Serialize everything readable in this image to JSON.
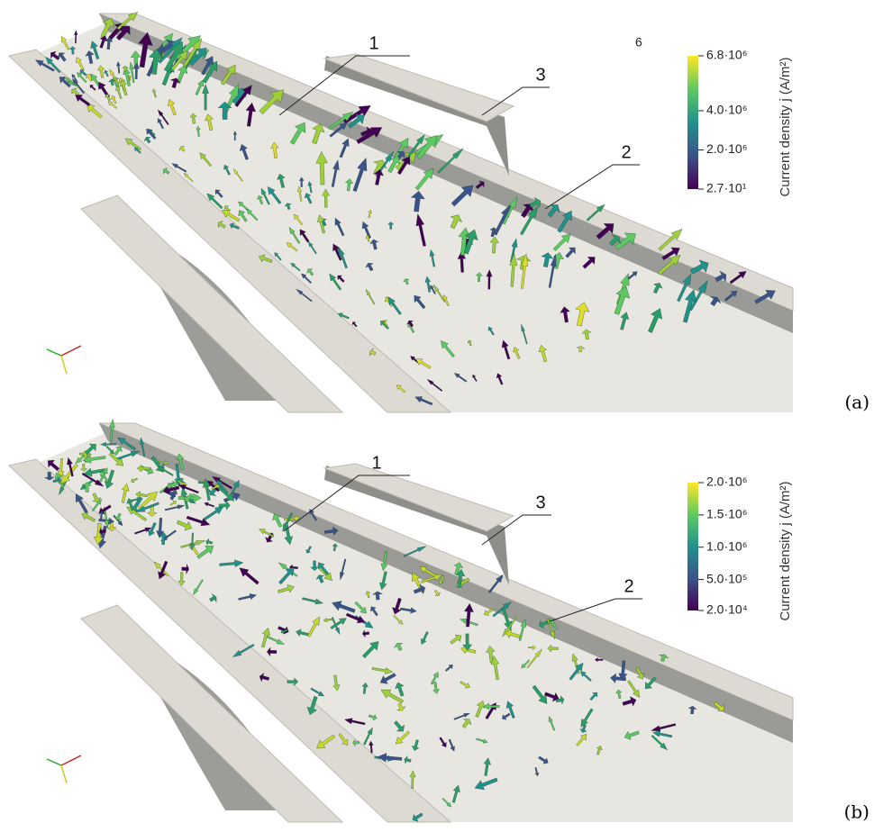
{
  "figure": {
    "panels": [
      {
        "label": "(a)",
        "extra_label": "6",
        "callouts": [
          "1",
          "2",
          "3"
        ],
        "colorbar": {
          "title": "Current density j (A/m²)",
          "lim": [
            27,
            6800000
          ],
          "ticks": [
            {
              "value": 6800000,
              "label": "6.8·10⁶"
            },
            {
              "value": 4000000,
              "label": "4.0·10⁶"
            },
            {
              "value": 2000000,
              "label": "2.0·10⁶"
            },
            {
              "value": 27,
              "label": "2.7·10¹"
            }
          ]
        }
      },
      {
        "label": "(b)",
        "callouts": [
          "1",
          "2",
          "3"
        ],
        "colorbar": {
          "title": "Current density j (A/m²)",
          "lim": [
            20000,
            2000000
          ],
          "ticks": [
            {
              "value": 2000000,
              "label": "2.0·10⁶"
            },
            {
              "value": 1500000,
              "label": "1.5·10⁶"
            },
            {
              "value": 1000000,
              "label": "1.0·10⁶"
            },
            {
              "value": 500000,
              "label": "5.0·10⁵"
            },
            {
              "value": 20000,
              "label": "2.0·10⁴"
            }
          ]
        }
      }
    ]
  }
}
